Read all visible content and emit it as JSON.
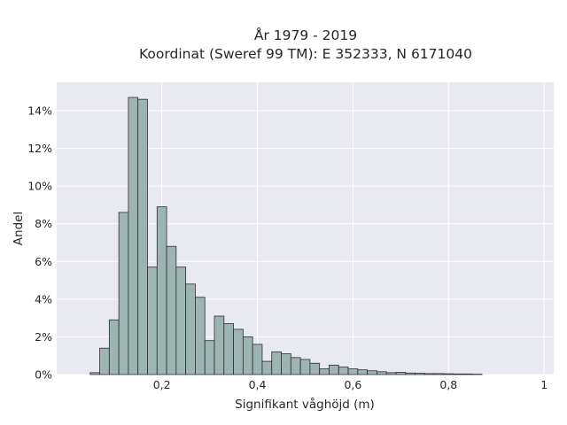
{
  "chart_data": {
    "type": "bar",
    "title_line1": "År 1979 - 2019",
    "title_line2": "Koordinat (Sweref 99 TM): E 352333, N 6171040",
    "xlabel": "Signifikant våghöjd (m)",
    "ylabel": "Andel",
    "xlim": [
      -0.02,
      1.02
    ],
    "ylim": [
      0,
      15.5
    ],
    "x_ticks": [
      0.2,
      0.4,
      0.6,
      0.8,
      1.0
    ],
    "x_tick_labels": [
      "0,2",
      "0,4",
      "0,6",
      "0,8",
      "1"
    ],
    "y_ticks": [
      0,
      2,
      4,
      6,
      8,
      10,
      12,
      14
    ],
    "y_tick_labels": [
      "0%",
      "2%",
      "4%",
      "6%",
      "8%",
      "10%",
      "12%",
      "14%"
    ],
    "bin_width": 0.02,
    "bin_starts": [
      0.05,
      0.07,
      0.09,
      0.11,
      0.13,
      0.15,
      0.17,
      0.19,
      0.21,
      0.23,
      0.25,
      0.27,
      0.29,
      0.31,
      0.33,
      0.35,
      0.37,
      0.39,
      0.41,
      0.43,
      0.45,
      0.47,
      0.49,
      0.51,
      0.53,
      0.55,
      0.57,
      0.59,
      0.61,
      0.63,
      0.65,
      0.67,
      0.69,
      0.71,
      0.73,
      0.75,
      0.77,
      0.79,
      0.81,
      0.83,
      0.85
    ],
    "values": [
      0.1,
      1.4,
      2.9,
      8.6,
      14.7,
      14.6,
      5.7,
      8.9,
      6.8,
      5.7,
      4.8,
      4.1,
      1.8,
      3.1,
      2.7,
      2.4,
      2.0,
      1.6,
      0.7,
      1.2,
      1.1,
      0.9,
      0.8,
      0.6,
      0.3,
      0.5,
      0.4,
      0.3,
      0.25,
      0.2,
      0.15,
      0.1,
      0.12,
      0.08,
      0.07,
      0.05,
      0.05,
      0.04,
      0.03,
      0.03,
      0.02
    ],
    "grid": true,
    "colors": {
      "bar_fill": "#9db5b2",
      "bar_stroke": "#2e2e2e",
      "plot_bg": "#e9e9f1",
      "grid": "#ffffff"
    }
  }
}
